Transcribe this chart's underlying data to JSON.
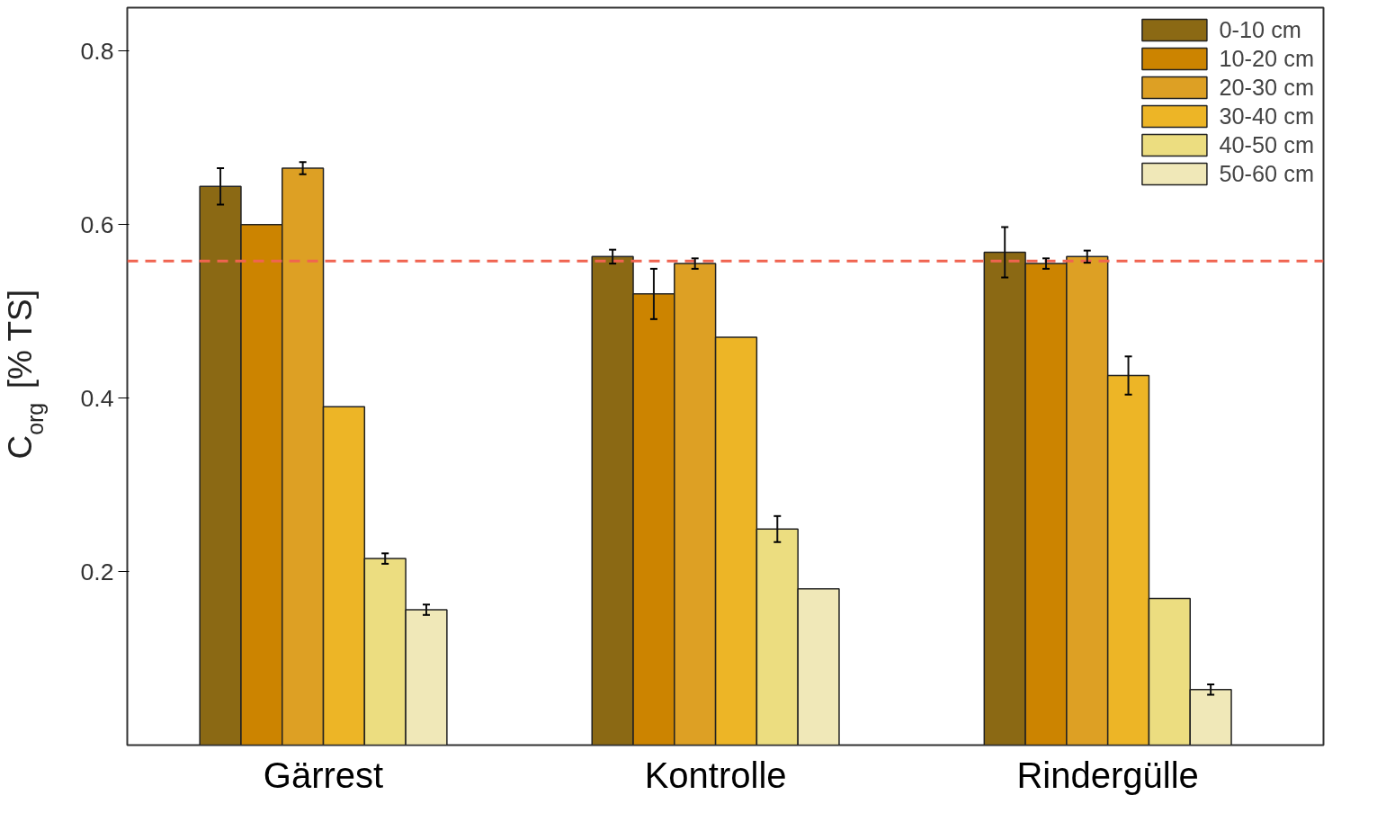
{
  "chart_data": {
    "type": "bar",
    "ylabel": "C$_{org}$ [% TS]",
    "categories": [
      "Gärrest",
      "Kontrolle",
      "Rindergülle"
    ],
    "series": [
      {
        "name": "0-10 cm",
        "color": "#8b6914",
        "values": [
          0.644,
          0.563,
          0.568
        ],
        "errors": [
          0.021,
          0.008,
          0.029
        ]
      },
      {
        "name": "10-20 cm",
        "color": "#cc8400",
        "values": [
          0.6,
          0.52,
          0.555
        ],
        "errors": [
          null,
          0.029,
          0.006
        ]
      },
      {
        "name": "20-30 cm",
        "color": "#dda024",
        "values": [
          0.665,
          0.555,
          0.563
        ],
        "errors": [
          0.007,
          0.006,
          0.007
        ]
      },
      {
        "name": "30-40 cm",
        "color": "#edb526",
        "values": [
          0.39,
          0.47,
          0.426
        ],
        "errors": [
          null,
          null,
          0.022
        ]
      },
      {
        "name": "40-50 cm",
        "color": "#ecdd80",
        "values": [
          0.215,
          0.249,
          0.169
        ],
        "errors": [
          0.006,
          0.015,
          null
        ]
      },
      {
        "name": "50-60 cm",
        "color": "#f0e8b8",
        "values": [
          0.156,
          0.18,
          0.064
        ],
        "errors": [
          0.006,
          null,
          0.006
        ]
      }
    ],
    "ylim": [
      0,
      0.85
    ],
    "yticks": [
      0.2,
      0.4,
      0.6,
      0.8
    ],
    "ref_lines": [
      {
        "axis": "y",
        "value": 0.558,
        "color": "#f06450",
        "line_style": "dashed"
      }
    ],
    "legend": "top right",
    "grid": false
  }
}
